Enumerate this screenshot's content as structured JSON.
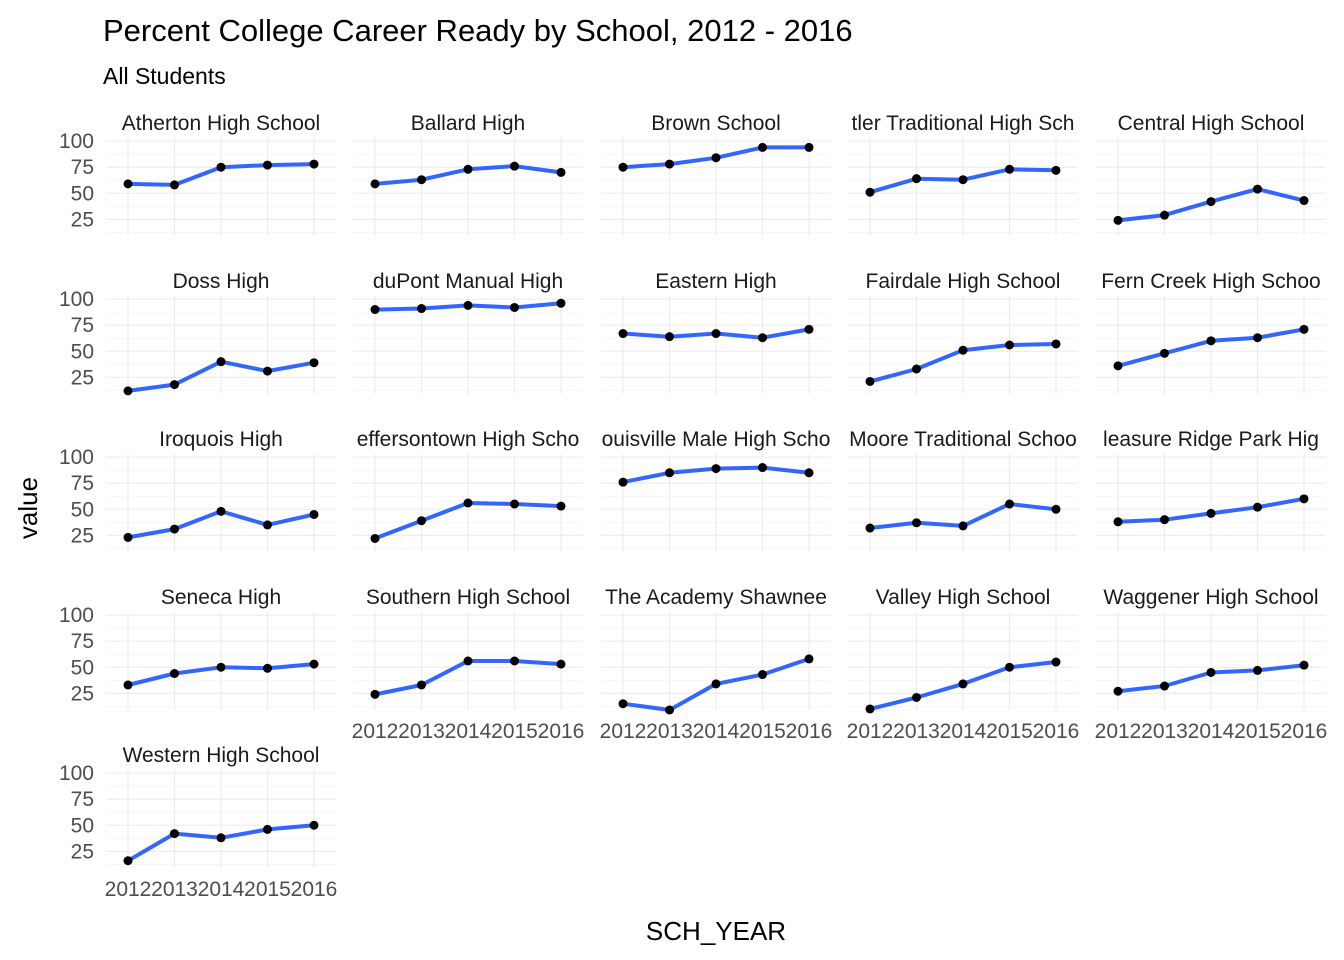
{
  "chart_data": {
    "type": "line",
    "title": "Percent College Career Ready by School, 2012 - 2016",
    "subtitle": "All Students",
    "xlabel": "SCH_YEAR",
    "ylabel": "value",
    "x": [
      "2012",
      "2013",
      "2014",
      "2015",
      "2016"
    ],
    "yticks": [
      "25",
      "50",
      "75",
      "100"
    ],
    "ylim": [
      9,
      103
    ],
    "grid": true,
    "colors": {
      "line": "#3366ff",
      "point": "#000000",
      "grid": "#ebebeb"
    },
    "panels": [
      {
        "name": "Atherton High School",
        "strip_label": "Atherton High School",
        "values": [
          59,
          58,
          75,
          77,
          78
        ]
      },
      {
        "name": "Ballard High",
        "strip_label": "Ballard High",
        "values": [
          59,
          63,
          73,
          76,
          70
        ]
      },
      {
        "name": "Brown School",
        "strip_label": "Brown School",
        "values": [
          75,
          78,
          84,
          94,
          94
        ]
      },
      {
        "name": "Butler Traditional High School",
        "strip_label": "tler Traditional High Sch",
        "values": [
          51,
          64,
          63,
          73,
          72
        ]
      },
      {
        "name": "Central High School",
        "strip_label": "Central High School",
        "values": [
          24,
          29,
          42,
          54,
          43
        ]
      },
      {
        "name": "Doss High",
        "strip_label": "Doss High",
        "values": [
          12,
          18,
          40,
          31,
          39
        ]
      },
      {
        "name": "duPont Manual High",
        "strip_label": "duPont Manual High",
        "values": [
          90,
          91,
          94,
          92,
          96
        ]
      },
      {
        "name": "Eastern High",
        "strip_label": "Eastern High",
        "values": [
          67,
          64,
          67,
          63,
          71
        ]
      },
      {
        "name": "Fairdale High School",
        "strip_label": "Fairdale High School",
        "values": [
          21,
          33,
          51,
          56,
          57
        ]
      },
      {
        "name": "Fern Creek High School",
        "strip_label": "Fern Creek High Schoo",
        "values": [
          36,
          48,
          60,
          63,
          71
        ]
      },
      {
        "name": "Iroquois High",
        "strip_label": "Iroquois High",
        "values": [
          23,
          31,
          48,
          35,
          45
        ]
      },
      {
        "name": "Jeffersontown High School",
        "strip_label": "effersontown High Scho",
        "values": [
          22,
          39,
          56,
          55,
          53
        ]
      },
      {
        "name": "Louisville Male High School",
        "strip_label": "ouisville Male High Scho",
        "values": [
          76,
          85,
          89,
          90,
          85
        ]
      },
      {
        "name": "Moore Traditional School",
        "strip_label": "Moore Traditional Schoo",
        "values": [
          32,
          37,
          34,
          55,
          50
        ]
      },
      {
        "name": "Pleasure Ridge Park High",
        "strip_label": "leasure Ridge Park Hig",
        "values": [
          38,
          40,
          46,
          52,
          60
        ]
      },
      {
        "name": "Seneca High",
        "strip_label": "Seneca High",
        "values": [
          33,
          44,
          50,
          49,
          53
        ]
      },
      {
        "name": "Southern High School",
        "strip_label": "Southern High School",
        "values": [
          24,
          33,
          56,
          56,
          53
        ]
      },
      {
        "name": "The Academy @ Shawnee",
        "strip_label": "The Academy  Shawnee",
        "values": [
          15,
          9,
          34,
          43,
          58
        ]
      },
      {
        "name": "Valley High School",
        "strip_label": "Valley High School",
        "values": [
          10,
          21,
          34,
          50,
          55
        ]
      },
      {
        "name": "Waggener High School",
        "strip_label": "Waggener High School",
        "values": [
          27,
          32,
          45,
          47,
          52
        ]
      },
      {
        "name": "Western High School",
        "strip_label": "Western High School",
        "values": [
          16,
          42,
          38,
          46,
          50
        ]
      }
    ]
  }
}
